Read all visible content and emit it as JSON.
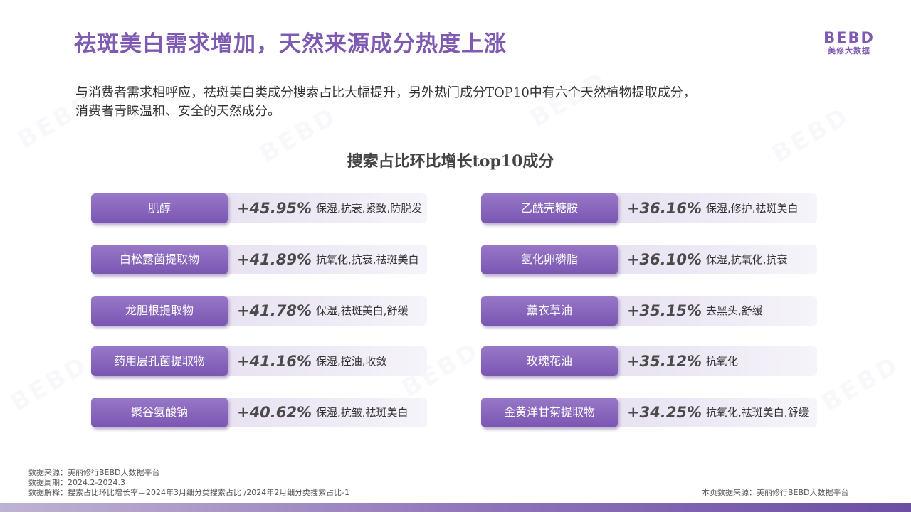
{
  "header": {
    "title": "祛斑美白需求增加，天然来源成分热度上涨",
    "logo_mark": "BEBD",
    "logo_sub": "美修大数据"
  },
  "intro": {
    "line1": "与消费者需求相呼应，祛斑美白类成分搜索占比大幅提升，另外热门成分TOP10中有六个天然植物提取成分，",
    "line2": "消费者青睐温和、安全的天然成分。"
  },
  "chart_title": "搜索占比环比增长top10成分",
  "ingredients": [
    {
      "name": "肌醇",
      "pct": "+45.95%",
      "tags": "保湿,抗衰,紧致,防脱发"
    },
    {
      "name": "白松露菌提取物",
      "pct": "+41.89%",
      "tags": "抗氧化,抗衰,祛斑美白"
    },
    {
      "name": "龙胆根提取物",
      "pct": "+41.78%",
      "tags": "保湿,祛斑美白,舒缓"
    },
    {
      "name": "药用层孔菌提取物",
      "pct": "+41.16%",
      "tags": "保湿,控油,收敛"
    },
    {
      "name": "聚谷氨酸钠",
      "pct": "+40.62%",
      "tags": "保湿,抗皱,祛斑美白"
    },
    {
      "name": "乙酰壳糖胺",
      "pct": "+36.16%",
      "tags": "保湿,修护,祛斑美白"
    },
    {
      "name": "氢化卵磷脂",
      "pct": "+36.10%",
      "tags": "保湿,抗氧化,抗衰"
    },
    {
      "name": "薰衣草油",
      "pct": "+35.15%",
      "tags": "去黑头,舒缓"
    },
    {
      "name": "玫瑰花油",
      "pct": "+35.12%",
      "tags": "抗氧化"
    },
    {
      "name": "金黄洋甘菊提取物",
      "pct": "+34.25%",
      "tags": "抗氧化,祛斑美白,舒缓"
    }
  ],
  "footnotes": {
    "source": "数据来源：美丽修行BEBD大数据平台",
    "period": "数据周期：2024.2-2024.3",
    "explain": "数据解释：搜索占比环比增长率＝2024年3月细分类搜索占比 /2024年2月细分类搜索占比-1"
  },
  "page_source": "本页数据来源：美丽修行BEBD大数据平台",
  "colors": {
    "accent": "#7e5ab3",
    "pill": "#8565bb"
  }
}
